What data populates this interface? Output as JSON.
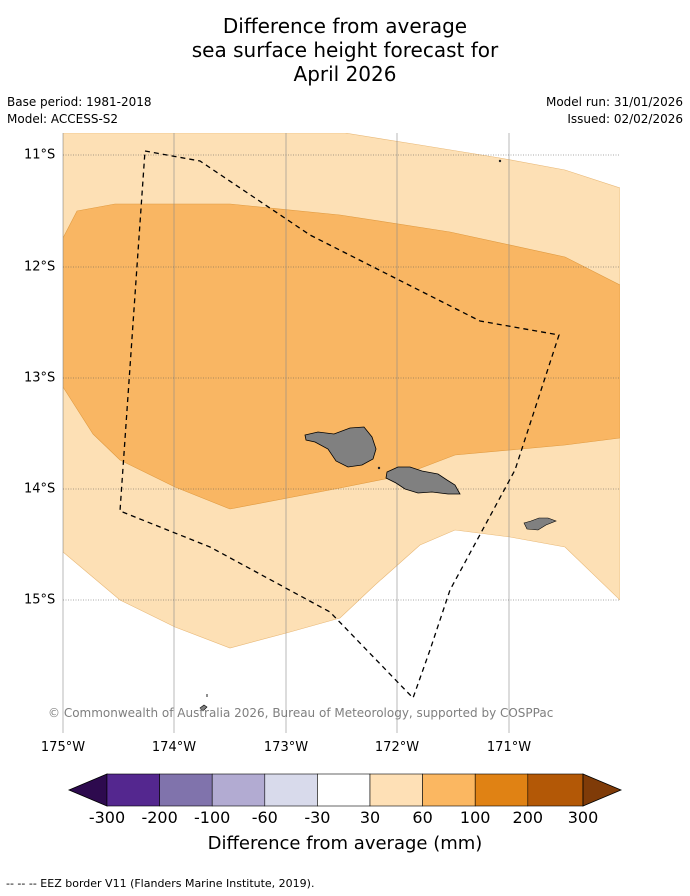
{
  "title": {
    "line1": "Difference from average",
    "line2": "sea surface height forecast for",
    "line3": "April 2026"
  },
  "meta": {
    "base_period": "Base period: 1981-2018",
    "model": "Model: ACCESS-S2",
    "model_run": "Model run: 31/01/2026",
    "issued": "Issued: 02/02/2026"
  },
  "credit": "© Commonwealth of Australia 2026, Bureau of Meteorology, supported by COSPPac",
  "axes": {
    "lon_labels": [
      "175°W",
      "174°W",
      "173°W",
      "172°W",
      "171°W"
    ],
    "lat_labels": [
      "11°S",
      "12°S",
      "13°S",
      "14°S",
      "15°S"
    ]
  },
  "colorbar": {
    "title": "Difference from average (mm)",
    "labels": [
      "-300",
      "-200",
      "-100",
      "-60",
      "-30",
      "30",
      "60",
      "100",
      "200",
      "300"
    ],
    "colors": [
      "#2d0a4e",
      "#54278f",
      "#8073ac",
      "#b2abd2",
      "#d8daeb",
      "#ffffff",
      "#fee0b6",
      "#fbb761",
      "#e08214",
      "#b35806",
      "#7f3b08"
    ]
  },
  "legend_footer": "-- -- -- EEZ border V11 (Flanders Marine Institute, 2019).",
  "map_colors": {
    "band_30_60": "#fde0b5",
    "band_60_100": "#f9b663",
    "land": "#808080",
    "eez_line": "#000000"
  }
}
